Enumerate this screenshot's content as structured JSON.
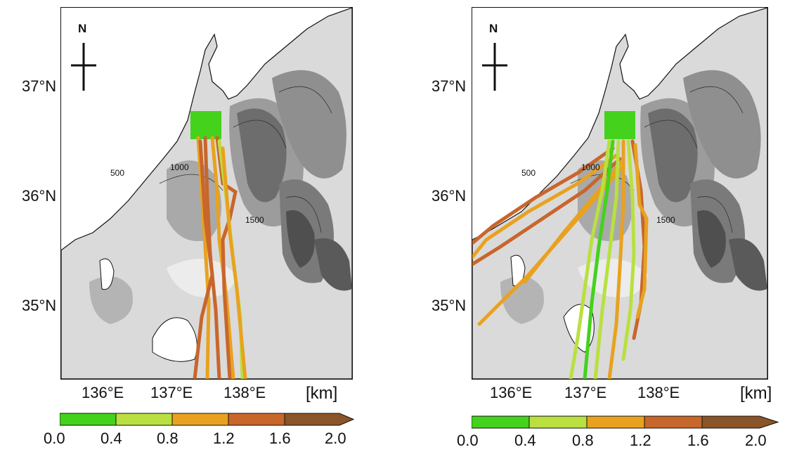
{
  "unit_label": "[km]",
  "north_label": "N",
  "latitude_labels": [
    "37°N",
    "36°N",
    "35°N"
  ],
  "longitude_labels": [
    "136°E",
    "137°E",
    "138°E"
  ],
  "contour_labels": [
    "500",
    "1000",
    "1500"
  ],
  "colorbar": {
    "ticks": [
      "0.0",
      "0.4",
      "0.8",
      "1.2",
      "1.6",
      "2.0"
    ],
    "bin_colors": [
      "#44d21c",
      "#b9e040",
      "#e8a21f",
      "#c8662c",
      "#8a5528"
    ]
  },
  "panels": [
    {
      "id": "left"
    },
    {
      "id": "right"
    }
  ]
}
